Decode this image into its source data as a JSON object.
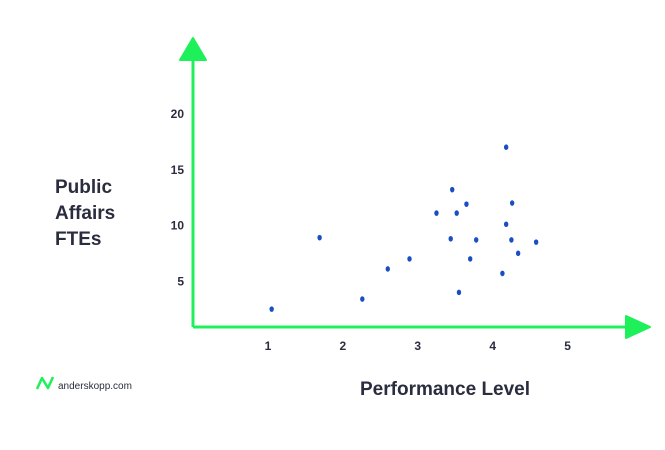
{
  "brand": "anderskopp.com",
  "chart_data": {
    "type": "scatter",
    "x_label": "Performance Level",
    "y_label": "Public Affairs FTEs",
    "x": [
      1.05,
      1.69,
      2.26,
      2.6,
      2.89,
      3.25,
      3.44,
      3.46,
      3.52,
      3.55,
      3.65,
      3.7,
      3.78,
      4.13,
      4.18,
      4.18,
      4.25,
      4.26,
      4.34,
      4.58
    ],
    "y": [
      2.6,
      9.0,
      3.5,
      6.2,
      7.1,
      11.2,
      8.9,
      13.3,
      11.2,
      4.1,
      12.0,
      7.1,
      8.8,
      5.8,
      17.1,
      10.2,
      8.8,
      12.1,
      7.6,
      8.6
    ],
    "color": "#1a4fc4",
    "axis_color": "#1ef05a",
    "xlim": [
      0,
      6.1
    ],
    "ylim": [
      1,
      26.7
    ],
    "xticks": [
      1,
      2,
      3,
      4,
      5
    ],
    "yticks": [
      5,
      10,
      15,
      20
    ]
  }
}
